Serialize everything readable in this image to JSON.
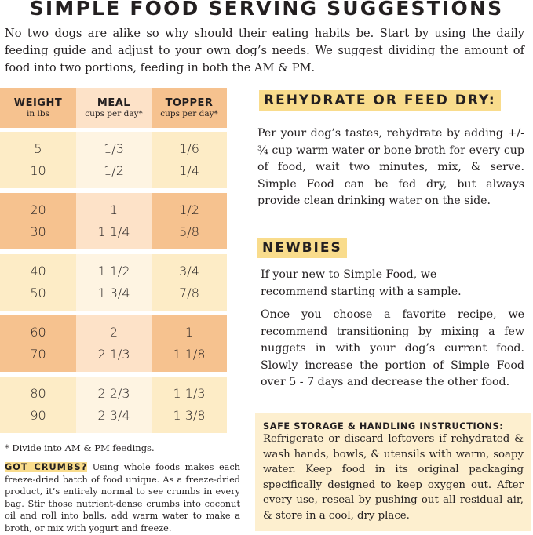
{
  "title": "SIMPLE FOOD SERVING SUGGESTIONS",
  "intro": "No two dogs are alike so why should their eating habits be. Start by using the daily feeding guide and adjust to your own dog’s needs. We suggest dividing the amount of food into two portions, feeding in both the AM & PM.",
  "table": {
    "headers": [
      {
        "title": "WEIGHT",
        "sub": "in lbs"
      },
      {
        "title": "MEAL",
        "sub": "cups per day*"
      },
      {
        "title": "TOPPER",
        "sub": "cups per day*"
      }
    ],
    "groups": [
      {
        "rows": [
          [
            "5",
            "1/3",
            "1/6"
          ],
          [
            "10",
            "1/2",
            "1/4"
          ]
        ]
      },
      {
        "rows": [
          [
            "20",
            "1",
            "1/2"
          ],
          [
            "30",
            "1 1/4",
            "5/8"
          ]
        ]
      },
      {
        "rows": [
          [
            "40",
            "1 1/2",
            "3/4"
          ],
          [
            "50",
            "1 3/4",
            "7/8"
          ]
        ]
      },
      {
        "rows": [
          [
            "60",
            "2",
            "1"
          ],
          [
            "70",
            "2 1/3",
            "1 1/8"
          ]
        ]
      },
      {
        "rows": [
          [
            "80",
            "2 2/3",
            "1 1/3"
          ],
          [
            "90",
            "2 3/4",
            "1 3/8"
          ]
        ]
      }
    ],
    "colors": {
      "dark_side": "#f6c28f",
      "dark_mid": "#fde2c8",
      "light_side": "#fdecc6",
      "light_mid": "#fef4e2"
    }
  },
  "footnote": "* Divide into AM & PM feedings.",
  "crumbs": {
    "label": "GOT CRUMBS?",
    "text": " Using whole foods makes each freeze-dried batch of food unique. As a freeze-dried product, it’s entirely normal to see crumbs in every bag. Stir those nutrient-dense crumbs into coconut oil and roll into balls, add warm water to make a broth, or mix with yogurt and freeze."
  },
  "rehydrate": {
    "heading": "REHYDRATE OR FEED DRY:",
    "text": "Per your dog’s tastes, rehydrate by adding +/- ¾ cup warm water or bone broth for every cup of food, wait two minutes, mix, & serve. Simple Food can be fed dry, but always provide clean drinking water on the side."
  },
  "newbies": {
    "heading": "NEWBIES",
    "text1": "If your new to Simple Food, we recommend starting with a sample.",
    "text2": "Once you choose a favorite recipe, we recommend transitioning by mixing a few nuggets in with your dog’s current food. Slowly increase the portion of Simple Food over 5 - 7 days and decrease the other food."
  },
  "storage": {
    "heading": "SAFE STORAGE & HANDLING INSTRUCTIONS:",
    "text": "Refrigerate or discard leftovers if rehydrated & wash hands, bowls, & utensils with warm, soapy water. Keep food in its original packaging specifically designed to keep oxygen out. After every use, reseal by pushing out all residual air, & store in a cool, dry place."
  },
  "accent": "#f9dc8c"
}
